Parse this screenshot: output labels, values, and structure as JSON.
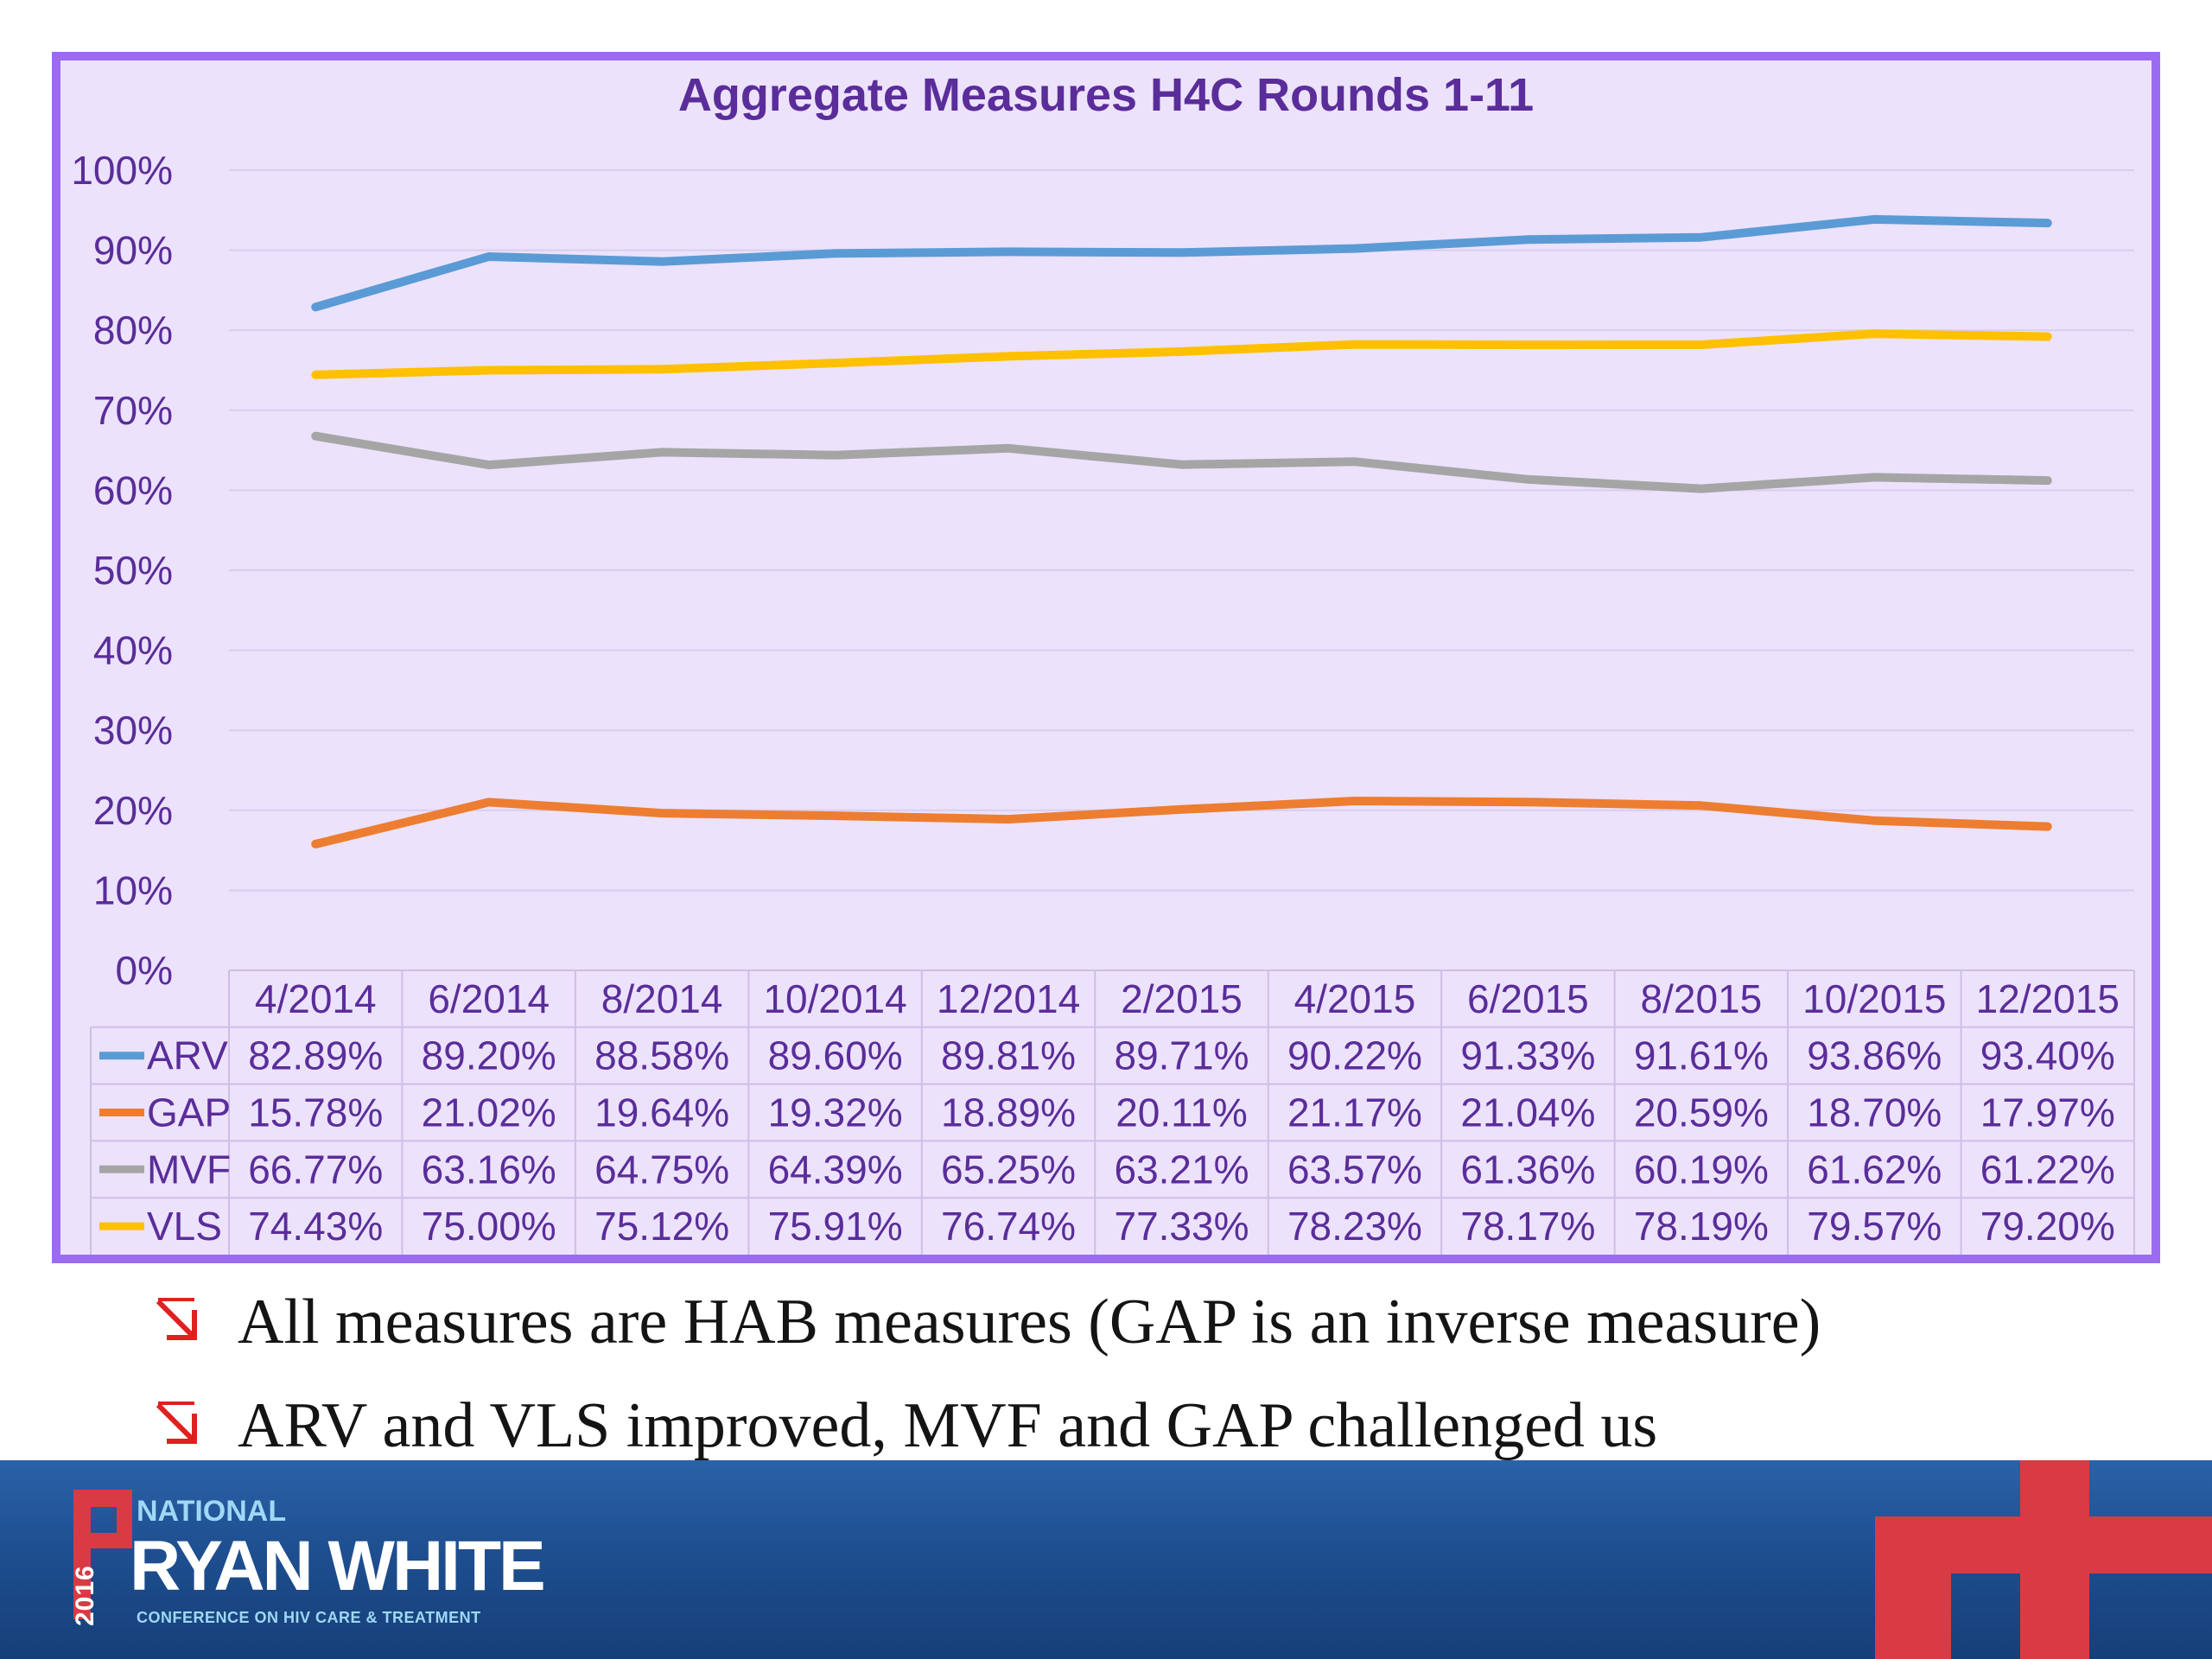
{
  "chart_data": {
    "type": "line",
    "title": "Aggregate Measures H4C Rounds 1-11",
    "categories": [
      "4/2014",
      "6/2014",
      "8/2014",
      "10/2014",
      "12/2014",
      "2/2015",
      "4/2015",
      "6/2015",
      "8/2015",
      "10/2015",
      "12/2015"
    ],
    "y_ticks": [
      "100%",
      "90%",
      "80%",
      "70%",
      "60%",
      "50%",
      "40%",
      "30%",
      "20%",
      "10%",
      "0%"
    ],
    "ylim": [
      0,
      100
    ],
    "grid": true,
    "legend": "data table below chart",
    "series": [
      {
        "name": "ARV",
        "color": "#5b9bd5",
        "values": [
          82.89,
          89.2,
          88.58,
          89.6,
          89.81,
          89.71,
          90.22,
          91.33,
          91.61,
          93.86,
          93.4
        ],
        "labels": [
          "82.89%",
          "89.20%",
          "88.58%",
          "89.60%",
          "89.81%",
          "89.71%",
          "90.22%",
          "91.33%",
          "91.61%",
          "93.86%",
          "93.40%"
        ]
      },
      {
        "name": "GAP",
        "color": "#ed7d31",
        "values": [
          15.78,
          21.02,
          19.64,
          19.32,
          18.89,
          20.11,
          21.17,
          21.04,
          20.59,
          18.7,
          17.97
        ],
        "labels": [
          "15.78%",
          "21.02%",
          "19.64%",
          "19.32%",
          "18.89%",
          "20.11%",
          "21.17%",
          "21.04%",
          "20.59%",
          "18.70%",
          "17.97%"
        ]
      },
      {
        "name": "MVF",
        "color": "#a5a5a5",
        "values": [
          66.77,
          63.16,
          64.75,
          64.39,
          65.25,
          63.21,
          63.57,
          61.36,
          60.19,
          61.62,
          61.22
        ],
        "labels": [
          "66.77%",
          "63.16%",
          "64.75%",
          "64.39%",
          "65.25%",
          "63.21%",
          "63.57%",
          "61.36%",
          "60.19%",
          "61.62%",
          "61.22%"
        ]
      },
      {
        "name": "VLS",
        "color": "#ffc000",
        "values": [
          74.43,
          75.0,
          75.12,
          75.91,
          76.74,
          77.33,
          78.23,
          78.17,
          78.19,
          79.57,
          79.2
        ],
        "labels": [
          "74.43%",
          "75.00%",
          "75.12%",
          "75.91%",
          "76.74%",
          "77.33%",
          "78.23%",
          "78.17%",
          "78.19%",
          "79.57%",
          "79.20%"
        ]
      }
    ]
  },
  "bullets": [
    "All measures are HAB measures (GAP is an inverse measure)",
    "ARV and VLS improved, MVF and GAP challenged us"
  ],
  "footer": {
    "logo_national": "NATIONAL",
    "logo_main": "RYAN WHITE",
    "logo_sub": "CONFERENCE ON HIV CARE & TREATMENT",
    "logo_year": "2016"
  },
  "colors": {
    "frame_border": "#9b6cf0",
    "chart_background": "#ece2fc",
    "text_purple": "#5a2d9a",
    "footer_blue": "#1e4f90",
    "accent_red": "#d93a44"
  }
}
